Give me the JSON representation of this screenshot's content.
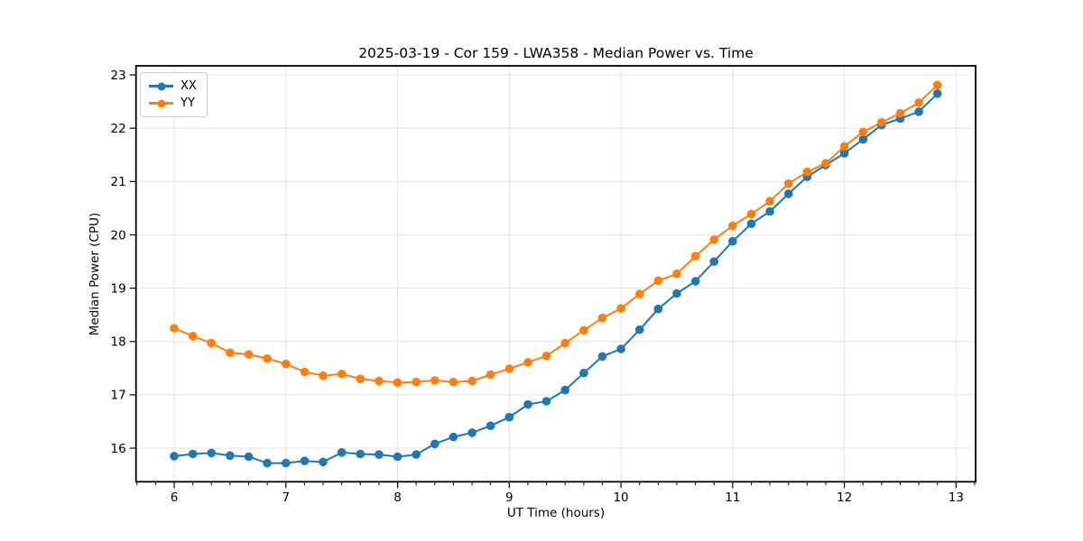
{
  "chart_data": {
    "type": "line",
    "title": "2025-03-19 - Cor 159 - LWA358 - Median Power vs. Time",
    "xlabel": "UT Time (hours)",
    "ylabel": "Median Power (CPU)",
    "xlim": [
      5.658,
      13.175
    ],
    "ylim": [
      15.37,
      23.17
    ],
    "x_ticks": [
      6,
      7,
      8,
      9,
      10,
      11,
      12,
      13
    ],
    "y_ticks": [
      16,
      17,
      18,
      19,
      20,
      21,
      22,
      23
    ],
    "x_minor_step_per_hour": 6,
    "grid": true,
    "grid_color": "#e4e4e4",
    "legend_position": "upper-left",
    "x": [
      6.0,
      6.167,
      6.333,
      6.5,
      6.667,
      6.833,
      7.0,
      7.167,
      7.333,
      7.5,
      7.667,
      7.833,
      8.0,
      8.167,
      8.333,
      8.5,
      8.667,
      8.833,
      9.0,
      9.167,
      9.333,
      9.5,
      9.667,
      9.833,
      10.0,
      10.167,
      10.333,
      10.5,
      10.667,
      10.833,
      11.0,
      11.167,
      11.333,
      11.5,
      11.667,
      11.833,
      12.0,
      12.167,
      12.333,
      12.5,
      12.667,
      12.833
    ],
    "series": [
      {
        "name": "XX",
        "color": "#1f77b4",
        "values": [
          15.85,
          15.89,
          15.91,
          15.86,
          15.84,
          15.72,
          15.72,
          15.76,
          15.74,
          15.92,
          15.89,
          15.88,
          15.84,
          15.88,
          16.08,
          16.21,
          16.29,
          16.42,
          16.58,
          16.82,
          16.88,
          17.09,
          17.41,
          17.72,
          17.86,
          18.22,
          18.61,
          18.9,
          19.13,
          19.5,
          19.88,
          20.21,
          20.44,
          20.77,
          21.09,
          21.31,
          21.53,
          21.79,
          22.06,
          22.18,
          22.31,
          22.65
        ]
      },
      {
        "name": "YY",
        "color": "#ff7f0e",
        "values": [
          18.25,
          18.1,
          17.97,
          17.79,
          17.76,
          17.68,
          17.58,
          17.43,
          17.36,
          17.39,
          17.3,
          17.26,
          17.23,
          17.24,
          17.27,
          17.24,
          17.26,
          17.38,
          17.49,
          17.61,
          17.73,
          17.97,
          18.21,
          18.44,
          18.62,
          18.89,
          19.14,
          19.27,
          19.6,
          19.91,
          20.17,
          20.39,
          20.63,
          20.96,
          21.18,
          21.34,
          21.66,
          21.93,
          22.11,
          22.28,
          22.48,
          22.81
        ]
      }
    ]
  }
}
